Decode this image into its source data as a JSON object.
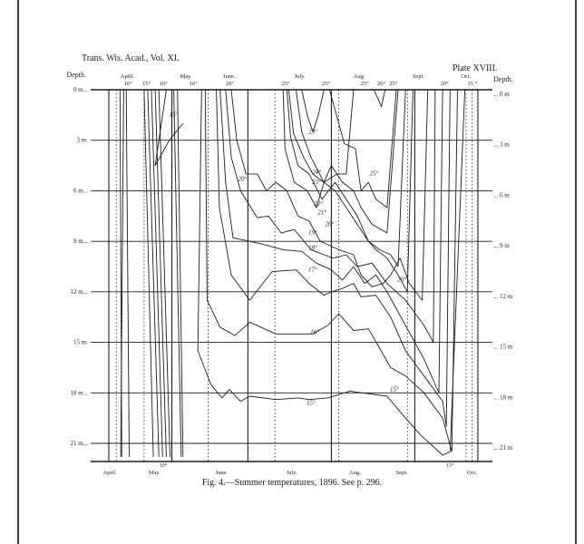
{
  "header": {
    "journal": "Trans. Wis. Acad., Vol. XI.",
    "plate": "Plate XVIII."
  },
  "caption": "Fig. 4.—Summer temperatures, 1896. See p. 296.",
  "colors": {
    "ink": "#1c1c1c",
    "paper": "#ffffff",
    "border": "#000000"
  },
  "chart_data": {
    "type": "line",
    "depth_label_left": "Depth.",
    "depth_label_right": "Depth.",
    "y_range": [
      0,
      22.3
    ],
    "x_range": [
      0,
      100
    ],
    "depth_ticks_left": [
      {
        "depth": 0,
        "label": "0 m..."
      },
      {
        "depth": 3,
        "label": "3 m."
      },
      {
        "depth": 6,
        "label": "6 m..."
      },
      {
        "depth": 9,
        "label": "9 m..."
      },
      {
        "depth": 12,
        "label": "12 m..."
      },
      {
        "depth": 15,
        "label": "15 m."
      },
      {
        "depth": 18,
        "label": "18 m..."
      },
      {
        "depth": 21,
        "label": "21 m..."
      }
    ],
    "depth_ticks_right": [
      {
        "depth": 0,
        "label": "... 0 m"
      },
      {
        "depth": 3,
        "label": "... 3 m"
      },
      {
        "depth": 6,
        "label": "... 6 m"
      },
      {
        "depth": 9,
        "label": "... 9 m"
      },
      {
        "depth": 12,
        "label": "... 12 m"
      },
      {
        "depth": 15,
        "label": "... 15 m"
      },
      {
        "depth": 18,
        "label": "... 18 m"
      },
      {
        "depth": 21,
        "label": "... 21 m"
      }
    ],
    "months_top": [
      {
        "x": 5.0,
        "label": "April."
      },
      {
        "x": 20.8,
        "label": "May."
      },
      {
        "x": 32.5,
        "label": "June."
      },
      {
        "x": 51.5,
        "label": "July."
      },
      {
        "x": 67.5,
        "label": "Aug."
      },
      {
        "x": 83.5,
        "label": "Sept."
      },
      {
        "x": 96.3,
        "label": "Oct."
      }
    ],
    "months_bottom": [
      {
        "x": 0.3,
        "label": "April."
      },
      {
        "x": 12.3,
        "label": "May."
      },
      {
        "x": 30.4,
        "label": "June."
      },
      {
        "x": 49.3,
        "label": "July."
      },
      {
        "x": 66.3,
        "label": "Aug."
      },
      {
        "x": 79.0,
        "label": "Sept."
      },
      {
        "x": 97.9,
        "label": "Oct."
      }
    ],
    "surface_temps": [
      {
        "x": 5.2,
        "label": "10°"
      },
      {
        "x": 10.2,
        "label": "15°"
      },
      {
        "x": 14.7,
        "label": "16°"
      },
      {
        "x": 22.8,
        "label": "16°"
      },
      {
        "x": 32.6,
        "label": "20°"
      },
      {
        "x": 47.7,
        "label": "25°"
      },
      {
        "x": 58.5,
        "label": "25°"
      },
      {
        "x": 69.0,
        "label": "25°"
      },
      {
        "x": 73.5,
        "label": "26°"
      },
      {
        "x": 76.7,
        "label": "25°"
      },
      {
        "x": 90.5,
        "label": "20°"
      },
      {
        "x": 98.0,
        "label": "15 °"
      }
    ],
    "bottom_temps": [
      {
        "x": 14.7,
        "label": "10°"
      },
      {
        "x": 92.0,
        "label": "15°"
      }
    ],
    "observation_dates": [
      2.0,
      9.5,
      26.8,
      44.8,
      62.0,
      80.5,
      96.3,
      97.9
    ],
    "month_boundaries": [
      0.0,
      17.0,
      37.5,
      60.0,
      82.5,
      99.5
    ],
    "isotherms": [
      {
        "temp": "10°",
        "points": [
          [
            3.0,
            0
          ],
          [
            3.5,
            21.8
          ]
        ]
      },
      {
        "temp": "10°",
        "points": [
          [
            4.0,
            0
          ],
          [
            3.2,
            21.8
          ]
        ]
      },
      {
        "temp": "10°",
        "points": [
          [
            4.7,
            0
          ],
          [
            5.5,
            21.8
          ]
        ]
      },
      {
        "temp": "10°",
        "points": [
          [
            9.5,
            0
          ],
          [
            12.0,
            21.8
          ]
        ]
      },
      {
        "temp": "15°",
        "points": [
          [
            10.5,
            0
          ],
          [
            13.5,
            21.8
          ]
        ]
      },
      {
        "temp": "15°",
        "points": [
          [
            11.5,
            0
          ],
          [
            14.5,
            21.8
          ]
        ]
      },
      {
        "temp": "15°",
        "points": [
          [
            12.5,
            0
          ],
          [
            15.5,
            21.8
          ]
        ]
      },
      {
        "temp": "15°",
        "points": [
          [
            13.5,
            0
          ],
          [
            16.5,
            21.8
          ]
        ]
      },
      {
        "temp": "15°",
        "points": [
          [
            17.5,
            0
          ],
          [
            19.5,
            21.8
          ]
        ]
      },
      {
        "temp": "15°",
        "points": [
          [
            18.5,
            0
          ],
          [
            20.0,
            21.8
          ]
        ]
      },
      {
        "temp": "15°",
        "points": [
          [
            15.5,
            0
          ],
          [
            12.5,
            4.5
          ],
          [
            16.3,
            3.0
          ],
          [
            20.0,
            2.0
          ]
        ]
      },
      {
        "temp": "15°",
        "points": [
          [
            25.0,
            0
          ],
          [
            24.0,
            15.5
          ],
          [
            27.5,
            17.5
          ],
          [
            30.5,
            18.3
          ],
          [
            32.5,
            17.8
          ],
          [
            35.5,
            18.5
          ],
          [
            38.0,
            18.2
          ],
          [
            45.0,
            18.4
          ],
          [
            51.0,
            18.3
          ],
          [
            54.0,
            18.4
          ],
          [
            59.0,
            18.3
          ],
          [
            65.0,
            17.9
          ],
          [
            75.0,
            18.2
          ],
          [
            80.0,
            19.5
          ],
          [
            84.0,
            20.5
          ],
          [
            90.0,
            21.7
          ],
          [
            92.0,
            21.5
          ],
          [
            96.0,
            0
          ]
        ]
      },
      {
        "temp": "16°",
        "points": [
          [
            26.0,
            0
          ],
          [
            26.5,
            12.5
          ],
          [
            30.0,
            14.1
          ],
          [
            34.0,
            14.6
          ],
          [
            38.0,
            13.8
          ],
          [
            45.0,
            14.5
          ],
          [
            55.0,
            14.5
          ],
          [
            59.0,
            14.0
          ],
          [
            62.0,
            13.3
          ],
          [
            66.0,
            14.3
          ],
          [
            70.0,
            14.2
          ],
          [
            76.0,
            16.5
          ],
          [
            80.0,
            17.0
          ],
          [
            85.0,
            18.0
          ],
          [
            90.0,
            19.5
          ],
          [
            92.5,
            21.5
          ],
          [
            94.0,
            0
          ]
        ]
      },
      {
        "temp": "17°",
        "points": [
          [
            29.0,
            0
          ],
          [
            29.8,
            7.0
          ],
          [
            33.0,
            11.0
          ],
          [
            38.0,
            12.5
          ],
          [
            44.0,
            10.8
          ],
          [
            50.5,
            10.7
          ],
          [
            54.0,
            11.5
          ],
          [
            58.0,
            12.2
          ],
          [
            60.0,
            12.0
          ],
          [
            63.0,
            11.8
          ],
          [
            66.0,
            11.5
          ],
          [
            68.0,
            12.3
          ],
          [
            72.0,
            12.2
          ],
          [
            76.0,
            13.5
          ],
          [
            80.0,
            15.5
          ],
          [
            85.0,
            17.0
          ],
          [
            90.0,
            18.5
          ],
          [
            91.0,
            20.0
          ],
          [
            92.0,
            0
          ]
        ]
      },
      {
        "temp": "18°",
        "points": [
          [
            30.0,
            0
          ],
          [
            31.5,
            5.5
          ],
          [
            33.5,
            8.8
          ],
          [
            38.0,
            9.0
          ],
          [
            42.0,
            9.2
          ],
          [
            47.0,
            9.5
          ],
          [
            52.0,
            9.6
          ],
          [
            56.0,
            10.3
          ],
          [
            60.0,
            10.7
          ],
          [
            63.0,
            11.3
          ],
          [
            66.0,
            10.5
          ],
          [
            69.0,
            11.5
          ],
          [
            72.0,
            11.0
          ],
          [
            75.0,
            12.0
          ],
          [
            80.0,
            14.0
          ],
          [
            85.0,
            16.0
          ],
          [
            88.0,
            17.5
          ],
          [
            89.0,
            18.0
          ],
          [
            90.0,
            0
          ]
        ]
      },
      {
        "temp": "19°",
        "points": [
          [
            31.5,
            0
          ],
          [
            33.0,
            4.0
          ],
          [
            35.5,
            6.0
          ],
          [
            40.0,
            7.6
          ],
          [
            43.0,
            7.5
          ],
          [
            46.5,
            8.5
          ],
          [
            50.0,
            8.3
          ],
          [
            54.5,
            9.5
          ],
          [
            58.0,
            9.8
          ],
          [
            60.5,
            10.0
          ],
          [
            64.0,
            9.8
          ],
          [
            67.0,
            10.5
          ],
          [
            71.0,
            10.3
          ],
          [
            75.0,
            11.5
          ],
          [
            80.0,
            12.5
          ],
          [
            85.0,
            14.0
          ],
          [
            87.5,
            15.0
          ],
          [
            88.0,
            0
          ]
        ]
      },
      {
        "temp": "20°",
        "points": [
          [
            33.0,
            0
          ],
          [
            34.5,
            3.0
          ],
          [
            37.0,
            5.0
          ],
          [
            40.0,
            5.0
          ],
          [
            42.5,
            6.0
          ],
          [
            45.0,
            5.5
          ],
          [
            48.0,
            6.0
          ],
          [
            51.0,
            7.5
          ],
          [
            54.0,
            7.8
          ],
          [
            57.0,
            9.0
          ],
          [
            62.0,
            9.5
          ],
          [
            66.0,
            9.8
          ],
          [
            68.0,
            11.0
          ],
          [
            71.0,
            11.7
          ],
          [
            74.0,
            11.5
          ],
          [
            76.0,
            11.0
          ],
          [
            78.5,
            10.0
          ],
          [
            81.0,
            11.5
          ],
          [
            84.5,
            12.5
          ],
          [
            86.0,
            0
          ]
        ]
      },
      {
        "temp": "21°",
        "points": [
          [
            47.0,
            0
          ],
          [
            47.5,
            3.5
          ],
          [
            50.0,
            5.5
          ],
          [
            53.5,
            6.0
          ],
          [
            56.0,
            7.0
          ],
          [
            58.0,
            5.5
          ],
          [
            61.0,
            6.0
          ],
          [
            64.0,
            7.0
          ],
          [
            67.0,
            8.0
          ],
          [
            70.0,
            9.0
          ],
          [
            72.0,
            9.5
          ],
          [
            75.0,
            10.0
          ],
          [
            78.0,
            11.0
          ],
          [
            80.5,
            12.0
          ],
          [
            82.0,
            0
          ]
        ]
      },
      {
        "temp": "22°",
        "points": [
          [
            48.0,
            0
          ],
          [
            49.0,
            2.8
          ],
          [
            51.0,
            4.5
          ],
          [
            54.0,
            5.0
          ],
          [
            57.5,
            6.5
          ],
          [
            61.0,
            5.5
          ],
          [
            64.0,
            6.5
          ],
          [
            67.0,
            7.5
          ],
          [
            70.0,
            9.0
          ],
          [
            73.0,
            9.5
          ],
          [
            76.0,
            9.8
          ],
          [
            78.0,
            10.5
          ],
          [
            80.0,
            0
          ]
        ]
      },
      {
        "temp": "23°",
        "points": [
          [
            48.5,
            0
          ],
          [
            49.8,
            2.6
          ],
          [
            52.5,
            4.0
          ],
          [
            55.0,
            5.0
          ],
          [
            58.0,
            5.5
          ],
          [
            60.0,
            4.5
          ],
          [
            63.0,
            5.5
          ],
          [
            66.0,
            6.0
          ],
          [
            68.0,
            7.0
          ],
          [
            71.0,
            8.0
          ],
          [
            75.0,
            8.5
          ],
          [
            78.0,
            0
          ]
        ]
      },
      {
        "temp": "23°",
        "points": [
          [
            52.0,
            0
          ],
          [
            53.5,
            1.5
          ],
          [
            55.0,
            2.5
          ],
          [
            56.5,
            1.5
          ],
          [
            58.0,
            0
          ]
        ]
      },
      {
        "temp": "24°",
        "points": [
          [
            50.5,
            0
          ],
          [
            52.0,
            2.5
          ],
          [
            54.5,
            4.0
          ],
          [
            58.0,
            5.5
          ],
          [
            61.5,
            5.0
          ],
          [
            64.0,
            5.0
          ],
          [
            66.0,
            0
          ]
        ]
      },
      {
        "temp": "25°",
        "points": [
          [
            59.5,
            0
          ],
          [
            63.5,
            3.2
          ],
          [
            66.5,
            3.5
          ],
          [
            68.0,
            6.0
          ],
          [
            70.0,
            5.5
          ],
          [
            72.0,
            6.5
          ],
          [
            75.0,
            7.0
          ],
          [
            77.5,
            0
          ]
        ]
      },
      {
        "temp": "25°",
        "points": [
          [
            71.5,
            0
          ],
          [
            73.5,
            1.0
          ],
          [
            74.5,
            0
          ]
        ]
      }
    ],
    "isotherm_labels": [
      {
        "x": 17.5,
        "depth": 1.6,
        "label": "15°"
      },
      {
        "x": 55.0,
        "depth": 2.6,
        "label": "23°"
      },
      {
        "x": 56.0,
        "depth": 5.0,
        "label": "24°"
      },
      {
        "x": 56.0,
        "depth": 5.6,
        "label": "23°"
      },
      {
        "x": 71.5,
        "depth": 5.1,
        "label": "25°"
      },
      {
        "x": 36.0,
        "depth": 5.4,
        "label": "20°"
      },
      {
        "x": 56.5,
        "depth": 6.9,
        "label": "22°"
      },
      {
        "x": 57.5,
        "depth": 7.4,
        "label": "21°"
      },
      {
        "x": 59.5,
        "depth": 8.1,
        "label": "20°"
      },
      {
        "x": 55.0,
        "depth": 8.6,
        "label": "19°"
      },
      {
        "x": 55.0,
        "depth": 9.5,
        "label": "18°"
      },
      {
        "x": 55.0,
        "depth": 10.8,
        "label": "17°"
      },
      {
        "x": 55.5,
        "depth": 14.5,
        "label": "16°"
      },
      {
        "x": 54.5,
        "depth": 18.7,
        "label": "15°"
      },
      {
        "x": 77.0,
        "depth": 17.9,
        "label": "15°"
      },
      {
        "x": 79.0,
        "depth": 11.4,
        "label": "20°"
      }
    ]
  }
}
